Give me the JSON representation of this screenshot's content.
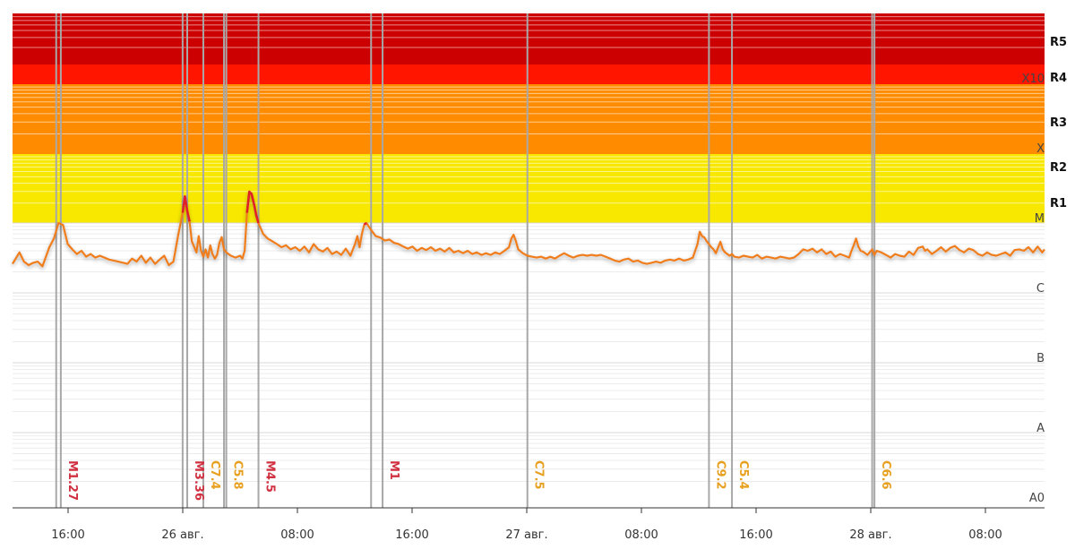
{
  "chart_data": {
    "type": "line",
    "scale": "log",
    "class_labels": [
      "A0",
      "A",
      "B",
      "C",
      "M",
      "X",
      "X10"
    ],
    "r_labels": [
      "R1",
      "R2",
      "R3",
      "R4",
      "R5"
    ],
    "x_ticks": [
      "16:00",
      "26 авг.",
      "08:00",
      "16:00",
      "27 авг.",
      "08:00",
      "16:00",
      "28 авг.",
      "08:00"
    ],
    "colors": {
      "below_m_line": "#f07d1e",
      "above_m_line": "#e0202a",
      "flare_line": "#a8a8a8",
      "band_r1_r2": "#f8e800",
      "band_r3": "#ff8c00",
      "band_r4": "#ff1500",
      "band_r5": "#cc0000",
      "label_m": "#d03040",
      "label_c": "#e8a020"
    },
    "series": [
      {
        "values": [
          [
            0,
            2.6
          ],
          [
            3,
            3.8
          ],
          [
            5,
            2.8
          ],
          [
            7,
            2.5
          ],
          [
            9,
            2.7
          ],
          [
            11,
            2.8
          ],
          [
            13,
            2.4
          ],
          [
            16,
            4.5
          ],
          [
            18,
            6.0
          ],
          [
            20,
            10.0
          ],
          [
            22,
            9.4
          ],
          [
            24,
            5.0
          ],
          [
            26,
            4.2
          ],
          [
            28,
            3.6
          ],
          [
            30,
            4.0
          ],
          [
            32,
            3.3
          ],
          [
            34,
            3.6
          ],
          [
            36,
            3.2
          ],
          [
            38,
            3.4
          ],
          [
            42,
            3.0
          ],
          [
            46,
            2.8
          ],
          [
            50,
            2.6
          ],
          [
            52,
            3.1
          ],
          [
            54,
            2.8
          ],
          [
            56,
            3.4
          ],
          [
            58,
            2.7
          ],
          [
            60,
            3.2
          ],
          [
            62,
            2.6
          ],
          [
            64,
            3.0
          ],
          [
            66,
            3.4
          ],
          [
            68,
            2.5
          ],
          [
            70,
            2.8
          ],
          [
            72,
            6.5
          ],
          [
            74,
            14.0
          ],
          [
            75,
            24.0
          ],
          [
            76,
            15.0
          ],
          [
            77,
            10.5
          ],
          [
            78,
            5.5
          ],
          [
            80,
            3.8
          ],
          [
            81,
            6.5
          ],
          [
            82,
            4.0
          ],
          [
            83,
            3.3
          ],
          [
            84,
            4.2
          ],
          [
            85,
            3.2
          ],
          [
            86,
            4.8
          ],
          [
            87,
            3.6
          ],
          [
            88,
            3.1
          ],
          [
            89,
            3.5
          ],
          [
            90,
            5.2
          ],
          [
            91,
            6.3
          ],
          [
            92,
            4.2
          ],
          [
            93,
            3.8
          ],
          [
            95,
            3.4
          ],
          [
            97,
            3.2
          ],
          [
            99,
            3.4
          ],
          [
            100,
            3.1
          ],
          [
            101,
            4.0
          ],
          [
            102,
            14.0
          ],
          [
            103,
            28.0
          ],
          [
            104,
            26.0
          ],
          [
            105,
            19.0
          ],
          [
            106,
            13.0
          ],
          [
            107,
            10.0
          ],
          [
            109,
            7.0
          ],
          [
            111,
            6.0
          ],
          [
            113,
            5.5
          ],
          [
            115,
            5.0
          ],
          [
            117,
            4.5
          ],
          [
            119,
            4.8
          ],
          [
            121,
            4.2
          ],
          [
            123,
            4.5
          ],
          [
            125,
            4.0
          ],
          [
            127,
            4.6
          ],
          [
            129,
            3.8
          ],
          [
            131,
            5.0
          ],
          [
            133,
            4.2
          ],
          [
            135,
            3.9
          ],
          [
            137,
            4.4
          ],
          [
            139,
            3.6
          ],
          [
            141,
            3.9
          ],
          [
            143,
            3.5
          ],
          [
            145,
            4.3
          ],
          [
            147,
            3.4
          ],
          [
            149,
            5.0
          ],
          [
            150,
            6.5
          ],
          [
            151,
            4.5
          ],
          [
            152,
            7.0
          ],
          [
            153,
            9.5
          ],
          [
            154,
            10.0
          ],
          [
            156,
            8.0
          ],
          [
            158,
            6.5
          ],
          [
            160,
            6.2
          ],
          [
            162,
            5.6
          ],
          [
            164,
            5.8
          ],
          [
            166,
            5.2
          ],
          [
            168,
            5.0
          ],
          [
            170,
            4.6
          ],
          [
            172,
            4.3
          ],
          [
            174,
            4.6
          ],
          [
            176,
            4.0
          ],
          [
            178,
            4.4
          ],
          [
            180,
            4.1
          ],
          [
            182,
            4.5
          ],
          [
            184,
            4.0
          ],
          [
            186,
            4.3
          ],
          [
            188,
            3.9
          ],
          [
            190,
            4.4
          ],
          [
            192,
            3.8
          ],
          [
            194,
            4.0
          ],
          [
            196,
            3.7
          ],
          [
            198,
            4.0
          ],
          [
            200,
            3.6
          ],
          [
            202,
            3.8
          ],
          [
            204,
            3.5
          ],
          [
            206,
            3.7
          ],
          [
            208,
            3.5
          ],
          [
            210,
            3.8
          ],
          [
            212,
            3.6
          ],
          [
            214,
            4.0
          ],
          [
            216,
            4.5
          ],
          [
            217,
            6.0
          ],
          [
            218,
            6.8
          ],
          [
            219,
            5.5
          ],
          [
            220,
            4.2
          ],
          [
            222,
            3.7
          ],
          [
            224,
            3.4
          ],
          [
            226,
            3.3
          ],
          [
            228,
            3.2
          ],
          [
            230,
            3.3
          ],
          [
            232,
            3.1
          ],
          [
            234,
            3.3
          ],
          [
            236,
            3.1
          ],
          [
            238,
            3.4
          ],
          [
            240,
            3.7
          ],
          [
            242,
            3.4
          ],
          [
            244,
            3.2
          ],
          [
            246,
            3.4
          ],
          [
            248,
            3.5
          ],
          [
            250,
            3.4
          ],
          [
            252,
            3.5
          ],
          [
            254,
            3.4
          ],
          [
            256,
            3.5
          ],
          [
            258,
            3.3
          ],
          [
            260,
            3.1
          ],
          [
            262,
            2.9
          ],
          [
            264,
            2.8
          ],
          [
            266,
            3.0
          ],
          [
            268,
            3.1
          ],
          [
            270,
            2.8
          ],
          [
            272,
            2.9
          ],
          [
            274,
            2.7
          ],
          [
            276,
            2.6
          ],
          [
            278,
            2.7
          ],
          [
            280,
            2.8
          ],
          [
            282,
            2.7
          ],
          [
            284,
            2.9
          ],
          [
            286,
            3.0
          ],
          [
            288,
            2.9
          ],
          [
            290,
            3.1
          ],
          [
            292,
            2.9
          ],
          [
            294,
            3.0
          ],
          [
            296,
            3.2
          ],
          [
            298,
            5.0
          ],
          [
            299,
            7.5
          ],
          [
            300,
            6.5
          ],
          [
            301,
            6.2
          ],
          [
            302,
            5.5
          ],
          [
            303,
            5.0
          ],
          [
            304,
            4.5
          ],
          [
            305,
            4.2
          ],
          [
            306,
            3.7
          ],
          [
            307,
            4.5
          ],
          [
            308,
            5.4
          ],
          [
            309,
            4.2
          ],
          [
            310,
            3.8
          ],
          [
            312,
            3.4
          ],
          [
            313,
            3.6
          ],
          [
            314,
            3.3
          ],
          [
            316,
            3.2
          ],
          [
            318,
            3.4
          ],
          [
            320,
            3.3
          ],
          [
            322,
            3.2
          ],
          [
            324,
            3.5
          ],
          [
            326,
            3.1
          ],
          [
            328,
            3.3
          ],
          [
            330,
            3.2
          ],
          [
            332,
            3.1
          ],
          [
            334,
            3.3
          ],
          [
            336,
            3.2
          ],
          [
            338,
            3.1
          ],
          [
            340,
            3.2
          ],
          [
            342,
            3.6
          ],
          [
            344,
            4.2
          ],
          [
            346,
            4.0
          ],
          [
            348,
            4.3
          ],
          [
            350,
            3.8
          ],
          [
            352,
            4.2
          ],
          [
            354,
            3.6
          ],
          [
            356,
            3.9
          ],
          [
            358,
            3.3
          ],
          [
            360,
            3.6
          ],
          [
            362,
            3.4
          ],
          [
            364,
            3.2
          ],
          [
            365,
            4.0
          ],
          [
            366,
            4.8
          ],
          [
            367,
            6.0
          ],
          [
            368,
            4.6
          ],
          [
            369,
            4.0
          ],
          [
            370,
            3.9
          ],
          [
            372,
            3.5
          ],
          [
            374,
            4.2
          ],
          [
            375,
            3.5
          ],
          [
            376,
            4.0
          ],
          [
            378,
            3.8
          ],
          [
            380,
            3.5
          ],
          [
            382,
            3.2
          ],
          [
            384,
            3.6
          ],
          [
            386,
            3.4
          ],
          [
            388,
            3.3
          ],
          [
            390,
            3.9
          ],
          [
            392,
            3.5
          ],
          [
            394,
            4.4
          ],
          [
            396,
            4.6
          ],
          [
            397,
            4.0
          ],
          [
            398,
            4.2
          ],
          [
            400,
            3.6
          ],
          [
            402,
            4.0
          ],
          [
            404,
            4.5
          ],
          [
            406,
            3.9
          ],
          [
            408,
            4.4
          ],
          [
            410,
            4.7
          ],
          [
            412,
            4.1
          ],
          [
            414,
            3.8
          ],
          [
            416,
            4.3
          ],
          [
            418,
            4.1
          ],
          [
            420,
            3.6
          ],
          [
            422,
            3.4
          ],
          [
            424,
            3.8
          ],
          [
            426,
            3.5
          ],
          [
            428,
            3.4
          ],
          [
            430,
            3.6
          ],
          [
            432,
            3.8
          ],
          [
            434,
            3.4
          ],
          [
            436,
            4.1
          ],
          [
            438,
            4.2
          ],
          [
            440,
            4.0
          ],
          [
            442,
            4.5
          ],
          [
            444,
            3.8
          ],
          [
            446,
            4.6
          ],
          [
            448,
            3.8
          ],
          [
            449,
            4.2
          ]
        ]
      }
    ],
    "flares": [
      {
        "label": "M1.27",
        "x": [
          19,
          21
        ],
        "class": "M"
      },
      {
        "label": "M3.36",
        "x": [
          74,
          76
        ],
        "class": "M"
      },
      {
        "label": "C7.4",
        "x": [
          83
        ],
        "class": "C"
      },
      {
        "label": "C5.8",
        "x": [
          92,
          93
        ],
        "class": "C"
      },
      {
        "label": "M4.5",
        "x": [
          107
        ],
        "class": "M"
      },
      {
        "label": "M1",
        "x": [
          156,
          161
        ],
        "class": "M"
      },
      {
        "label": "C7.5",
        "x": [
          224
        ],
        "class": "C"
      },
      {
        "label": "C9.2",
        "x": [
          303
        ],
        "class": "C"
      },
      {
        "label": "C5.4",
        "x": [
          313
        ],
        "class": "C"
      },
      {
        "label": "C6.6",
        "x": [
          374,
          375
        ],
        "class": "C"
      }
    ]
  }
}
